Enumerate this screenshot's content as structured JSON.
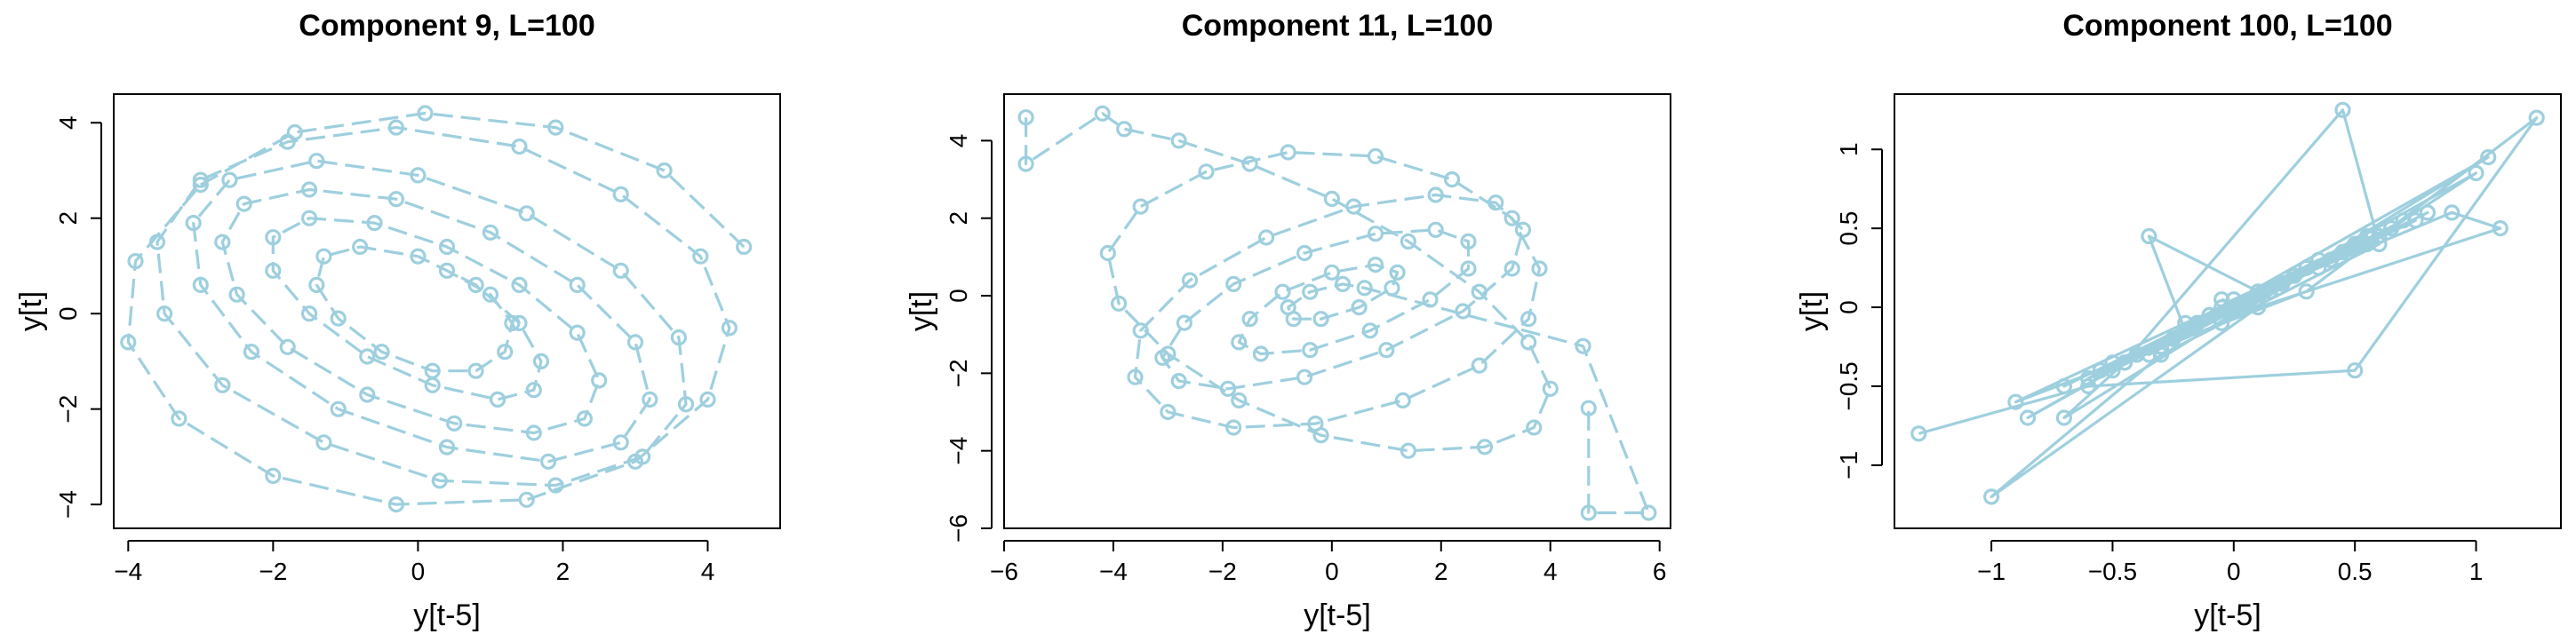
{
  "colors": {
    "series": "#9ecfde",
    "axis": "#000000"
  },
  "chart_data": [
    {
      "type": "scatter",
      "title": "Component 9, L=100",
      "xlabel": "y[t-5]",
      "ylabel": "y[t]",
      "xlim": [
        -4.2,
        5.0
      ],
      "ylim": [
        -4.5,
        4.6
      ],
      "xticks": [
        -4,
        -2,
        0,
        2,
        4
      ],
      "xtick_labels": [
        "−4",
        "−2",
        "0",
        "2",
        "4"
      ],
      "yticks": [
        -4,
        -2,
        0,
        2,
        4
      ],
      "ytick_labels": [
        "−4",
        "−2",
        "0",
        "2",
        "4"
      ],
      "line_style": "dashed",
      "marker": "open-circle",
      "grid": false,
      "legend": false,
      "series": [
        {
          "x": [
            4.5,
            3.4,
            1.9,
            0.1,
            -1.7,
            -3.0,
            -3.9,
            -4.0,
            -3.3,
            -2.0,
            -0.3,
            1.5,
            3.0,
            4.0,
            4.3,
            3.9,
            2.8,
            1.4,
            -0.3,
            -1.8,
            -3.0,
            -3.6,
            -3.5,
            -2.7,
            -1.3,
            0.3,
            1.9,
            3.1,
            3.7,
            3.6,
            2.8,
            1.5,
            0.0,
            -1.4,
            -2.6,
            -3.1,
            -3.0,
            -2.3,
            -1.1,
            0.4,
            1.8,
            2.8,
            3.2,
            3.0,
            2.2,
            1.0,
            -0.3,
            -1.5,
            -2.4,
            -2.7,
            -2.5,
            -1.8,
            -0.7,
            0.5,
            1.6,
            2.3,
            2.5,
            2.2,
            1.4,
            0.4,
            -0.6,
            -1.5,
            -2.0,
            -2.0,
            -1.5,
            -0.7,
            0.2,
            1.1,
            1.6,
            1.7,
            1.4,
            0.8,
            0.0,
            -0.8,
            -1.3,
            -1.4,
            -1.1,
            -0.5,
            0.2,
            0.8,
            1.2,
            1.3,
            1.0,
            0.4
          ],
          "y": [
            1.4,
            3.0,
            3.9,
            4.2,
            3.8,
            2.7,
            1.1,
            -0.6,
            -2.2,
            -3.4,
            -4.0,
            -3.9,
            -3.1,
            -1.8,
            -0.3,
            1.2,
            2.5,
            3.5,
            3.9,
            3.6,
            2.8,
            1.5,
            0.0,
            -1.5,
            -2.7,
            -3.5,
            -3.6,
            -3.0,
            -1.9,
            -0.5,
            0.9,
            2.1,
            2.9,
            3.2,
            2.8,
            1.9,
            0.6,
            -0.8,
            -2.0,
            -2.8,
            -3.1,
            -2.7,
            -1.8,
            -0.6,
            0.6,
            1.7,
            2.4,
            2.6,
            2.3,
            1.5,
            0.4,
            -0.7,
            -1.7,
            -2.3,
            -2.5,
            -2.2,
            -1.4,
            -0.4,
            0.6,
            1.4,
            1.9,
            2.0,
            1.6,
            0.9,
            0.0,
            -0.9,
            -1.5,
            -1.8,
            -1.6,
            -1.0,
            -0.2,
            0.6,
            1.2,
            1.4,
            1.2,
            0.6,
            -0.1,
            -0.8,
            -1.2,
            -1.2,
            -0.8,
            -0.2,
            0.4,
            0.9
          ]
        }
      ]
    },
    {
      "type": "scatter",
      "title": "Component 11, L=100",
      "xlabel": "y[t-5]",
      "ylabel": "y[t]",
      "xlim": [
        -6.0,
        6.2
      ],
      "ylim": [
        -6.0,
        5.2
      ],
      "xticks": [
        -6,
        -4,
        -2,
        0,
        2,
        4,
        6
      ],
      "xtick_labels": [
        "−6",
        "−4",
        "−2",
        "0",
        "2",
        "4",
        "6"
      ],
      "yticks": [
        -6,
        -4,
        -2,
        0,
        2,
        4
      ],
      "ytick_labels": [
        "−6",
        "−4",
        "−2",
        "0",
        "2",
        "4"
      ],
      "line_style": "dashed",
      "marker": "open-circle",
      "grid": false,
      "legend": false,
      "series": [
        {
          "x": [
            -5.6,
            -5.6,
            -4.2,
            -3.8,
            -2.8,
            -1.5,
            0.0,
            1.4,
            2.7,
            3.6,
            4.0,
            3.7,
            2.8,
            1.4,
            -0.2,
            -1.7,
            -3.0,
            -3.9,
            -4.1,
            -3.5,
            -2.3,
            -0.8,
            0.8,
            2.2,
            3.3,
            3.8,
            3.6,
            2.7,
            1.3,
            -0.3,
            -1.8,
            -3.0,
            -3.6,
            -3.5,
            -2.6,
            -1.2,
            0.4,
            1.9,
            3.0,
            3.5,
            3.3,
            2.4,
            1.0,
            -0.5,
            -1.9,
            -2.8,
            -3.1,
            -2.7,
            -1.8,
            -0.5,
            0.8,
            1.9,
            2.5,
            2.5,
            1.8,
            0.7,
            -0.4,
            -1.3,
            -1.7,
            -1.5,
            -0.9,
            0.0,
            0.8,
            1.2,
            1.1,
            0.5,
            -0.2,
            -0.7,
            -0.8,
            -0.4,
            0.2,
            0.6,
            4.6,
            5.8,
            4.7,
            4.7
          ],
          "y": [
            4.6,
            3.4,
            4.7,
            4.3,
            4.0,
            3.4,
            2.5,
            1.4,
            0.1,
            -1.2,
            -2.4,
            -3.4,
            -3.9,
            -4.0,
            -3.6,
            -2.7,
            -1.5,
            -0.2,
            1.1,
            2.3,
            3.2,
            3.7,
            3.6,
            3.0,
            2.0,
            0.7,
            -0.6,
            -1.8,
            -2.7,
            -3.3,
            -3.4,
            -3.0,
            -2.1,
            -0.9,
            0.4,
            1.5,
            2.3,
            2.6,
            2.4,
            1.7,
            0.7,
            -0.4,
            -1.4,
            -2.1,
            -2.4,
            -2.2,
            -1.6,
            -0.7,
            0.3,
            1.1,
            1.6,
            1.7,
            1.4,
            0.7,
            -0.1,
            -0.9,
            -1.4,
            -1.5,
            -1.2,
            -0.6,
            0.1,
            0.6,
            0.8,
            0.6,
            0.2,
            -0.3,
            -0.6,
            -0.6,
            -0.3,
            0.1,
            0.3,
            0.2,
            -1.3,
            -5.6,
            -5.6,
            -2.9
          ]
        }
      ]
    },
    {
      "type": "scatter",
      "title": "Component 100, L=100",
      "xlabel": "y[t-5]",
      "ylabel": "y[t]",
      "xlim": [
        -1.4,
        1.35
      ],
      "ylim": [
        -1.4,
        1.35
      ],
      "xticks": [
        -1,
        -0.5,
        0,
        0.5,
        1
      ],
      "xtick_labels": [
        "−1",
        "−0.5",
        "0",
        "0.5",
        "1"
      ],
      "yticks": [
        -1,
        -0.5,
        0,
        0.5,
        1
      ],
      "ytick_labels": [
        "−1",
        "−0.5",
        "0",
        "0.5",
        "1"
      ],
      "line_style": "solid",
      "marker": "open-circle",
      "grid": false,
      "legend": false,
      "series": [
        {
          "x": [
            -1.3,
            -0.6,
            0.5,
            1.25,
            0.3,
            -0.9,
            -0.2,
            0.9,
            1.1,
            0.1,
            -1.0,
            -0.3,
            0.6,
            0.45,
            -0.45,
            -0.7,
            0.2,
            0.75,
            -0.1,
            -0.55,
            0.3,
            0.5,
            -0.2,
            -0.35,
            0.1,
            0.4,
            -0.05,
            -0.6,
            0.0,
            0.65,
            0.25,
            -0.4,
            -0.15,
            0.35,
            0.55,
            -0.25,
            -0.5,
            0.15,
            0.4,
            -0.1,
            -0.3,
            0.2,
            0.8,
            0.0,
            -0.5,
            -0.2,
            0.3,
            0.05,
            -0.15,
            0.6,
            -0.35,
            0.25,
            -0.05,
            0.45,
            -0.25,
            0.1,
            0.7,
            -0.45,
            0.15,
            0.35,
            -0.1,
            -0.7,
            0.5,
            0.2,
            -0.3,
            0.0,
            1.0,
            0.55,
            -0.6,
            0.1,
            0.3,
            -0.2,
            0.45,
            -0.4,
            0.25,
            1.05,
            -0.85,
            -0.15,
            0.05,
            -0.05
          ],
          "y": [
            -0.8,
            -0.5,
            -0.4,
            1.2,
            0.1,
            -0.6,
            -0.1,
            0.6,
            0.5,
            0.0,
            -1.2,
            -0.3,
            0.4,
            1.25,
            -0.35,
            -0.7,
            0.15,
            0.55,
            -0.05,
            -0.4,
            0.25,
            0.4,
            -0.15,
            0.45,
            0.1,
            0.3,
            -0.1,
            -0.45,
            0.05,
            0.5,
            0.2,
            -0.3,
            -0.1,
            0.25,
            0.45,
            -0.2,
            -0.4,
            0.1,
            0.3,
            -0.05,
            -0.25,
            0.15,
            0.6,
            0.0,
            -0.35,
            -0.15,
            0.25,
            0.0,
            -0.1,
            0.45,
            -0.3,
            0.2,
            0.0,
            0.35,
            -0.2,
            0.05,
            0.55,
            -0.35,
            0.1,
            0.3,
            -0.05,
            -0.5,
            0.4,
            0.15,
            -0.25,
            0.0,
            0.85,
            0.4,
            -0.45,
            0.05,
            0.25,
            -0.15,
            0.35,
            -0.3,
            0.2,
            0.95,
            -0.7,
            -0.1,
            0.0,
            0.05
          ]
        }
      ]
    }
  ]
}
